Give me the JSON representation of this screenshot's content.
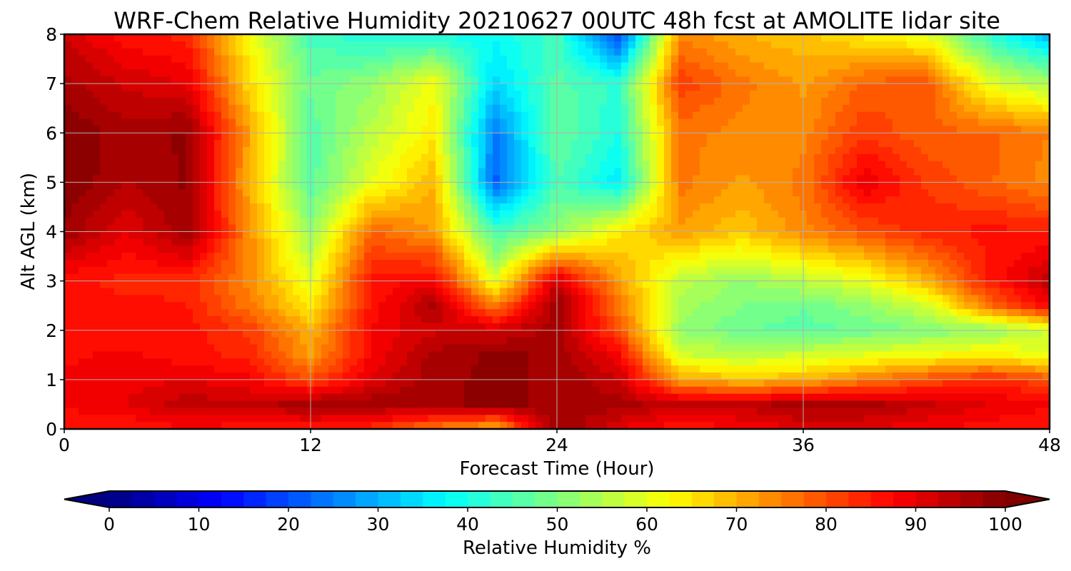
{
  "chart_data": {
    "type": "heatmap",
    "title": "WRF-Chem Relative Humidity 20210627 00UTC 48h fcst at AMOLITE lidar site",
    "xlabel": "Forecast Time (Hour)",
    "ylabel": "Alt AGL (km)",
    "xlim": [
      0,
      48
    ],
    "ylim": [
      0,
      8
    ],
    "xticks": [
      0,
      12,
      24,
      36,
      48
    ],
    "yticks": [
      0,
      1,
      2,
      3,
      4,
      5,
      6,
      7,
      8
    ],
    "grid": true,
    "x": [
      0,
      3,
      6,
      9,
      12,
      15,
      18,
      21,
      24,
      27,
      30,
      33,
      36,
      39,
      42,
      45,
      48
    ],
    "y": [
      0,
      0.5,
      1,
      1.5,
      2,
      2.5,
      3,
      4,
      5,
      6,
      7,
      8
    ],
    "z": [
      [
        85,
        85,
        87,
        86,
        85,
        83,
        75,
        70,
        98,
        90,
        85,
        88,
        90,
        90,
        88,
        86,
        85
      ],
      [
        88,
        90,
        94,
        93,
        97,
        97,
        97,
        98,
        97,
        96,
        93,
        93,
        97,
        96,
        93,
        90,
        88
      ],
      [
        88,
        89,
        90,
        88,
        80,
        90,
        97,
        98,
        97,
        93,
        72,
        68,
        70,
        75,
        80,
        84,
        80
      ],
      [
        87,
        88,
        86,
        84,
        72,
        88,
        96,
        98,
        97,
        88,
        58,
        56,
        58,
        60,
        62,
        64,
        60
      ],
      [
        86,
        86,
        86,
        82,
        70,
        88,
        92,
        92,
        96,
        80,
        52,
        48,
        46,
        48,
        50,
        52,
        58
      ],
      [
        85,
        86,
        85,
        76,
        64,
        86,
        96,
        75,
        98,
        76,
        54,
        50,
        48,
        52,
        58,
        76,
        88
      ],
      [
        86,
        84,
        84,
        74,
        60,
        86,
        88,
        60,
        92,
        72,
        56,
        52,
        56,
        60,
        70,
        85,
        94
      ],
      [
        97,
        90,
        97,
        74,
        52,
        78,
        72,
        44,
        52,
        64,
        72,
        68,
        74,
        80,
        84,
        86,
        85
      ],
      [
        100,
        95,
        98,
        70,
        46,
        60,
        70,
        22,
        45,
        36,
        76,
        72,
        76,
        90,
        82,
        78,
        74
      ],
      [
        100,
        96,
        98,
        72,
        46,
        56,
        64,
        24,
        48,
        40,
        76,
        74,
        74,
        82,
        78,
        78,
        75
      ],
      [
        96,
        92,
        90,
        66,
        48,
        52,
        62,
        34,
        46,
        42,
        82,
        76,
        72,
        78,
        80,
        60,
        54
      ],
      [
        92,
        86,
        84,
        62,
        44,
        40,
        40,
        38,
        44,
        18,
        74,
        70,
        68,
        64,
        60,
        42,
        30
      ]
    ],
    "colorbar": {
      "label": "Relative Humidity %",
      "min": 0,
      "max": 100,
      "ticks": [
        0,
        10,
        20,
        30,
        40,
        50,
        60,
        70,
        80,
        90,
        100
      ],
      "colormap": "jet",
      "extend": "both"
    }
  }
}
